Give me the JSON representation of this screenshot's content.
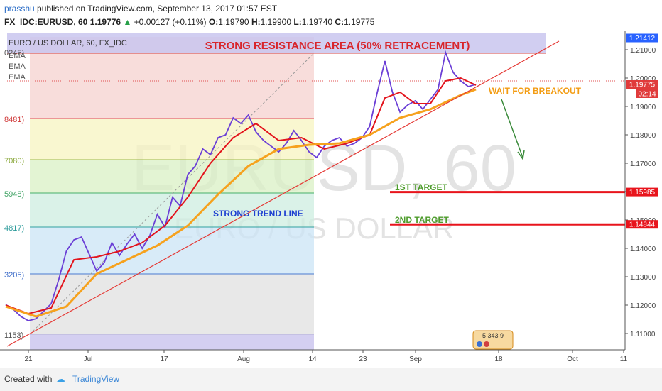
{
  "header": {
    "user": "prasshu",
    "published": "published on TradingView.com, September 13, 2017 01:57 EST",
    "symbol_line": "FX_IDC:EURUSD, 60",
    "last": "1.19776",
    "change": "+0.00127 (+0.11%)",
    "o_label": "O:",
    "o": "1.19790",
    "h_label": "H:",
    "h": "1.19900",
    "l_label": "L:",
    "l": "1.19740",
    "c_label": "C:",
    "c": "1.19775"
  },
  "legend": {
    "title": "EURO / US DOLLAR, 60, FX_IDC",
    "indicators": [
      "EMA",
      "EMA",
      "EMA"
    ]
  },
  "watermark": {
    "symbol": "EURUSD, 60",
    "name": "EURO / US DOLLAR"
  },
  "annotations": {
    "resistance": "STRONG RESISTANCE AREA (50% RETRACEMENT)",
    "breakout": "WAIT FOR BREAKOUT",
    "trendline": "STRONG TREND LINE",
    "target1": "1ST TARGET",
    "target2": "2ND TARGET"
  },
  "badge": "5 343 9",
  "footer": {
    "created_with": "Created with",
    "brand": "TradingView"
  },
  "colors": {
    "ema_fast": "#8a3cd6",
    "ema_mid": "#e3141c",
    "ema_slow": "#f6a21e",
    "trendline": "#e53935",
    "resistance_text": "#d8262c",
    "breakout_text": "#f39c12",
    "target_text": "#4f9d2d",
    "trend_text": "#1e3fd1",
    "axis_blue": "#2962ff"
  },
  "chart_data": {
    "type": "line",
    "title": "EURO / US DOLLAR, 60, FX_IDC",
    "x_ticks": [
      "21",
      "Jul",
      "17",
      "Aug",
      "14",
      "23",
      "Sep",
      "18",
      "Oct",
      "11"
    ],
    "y_ticks": [
      1.11,
      1.12,
      1.13,
      1.14,
      1.15,
      1.16,
      1.17,
      1.18,
      1.19,
      1.2,
      1.21
    ],
    "ylim": [
      1.1055,
      1.2155
    ],
    "price_labels": {
      "top": "1.21412",
      "current": "1.19775",
      "time": "02:14",
      "target1": "1.15985",
      "target2": "1.14844"
    },
    "levels": {
      "top": 1.21412,
      "current": 1.19775,
      "target1": 1.15985,
      "target2": 1.14844
    },
    "fibonacci": {
      "labels": [
        "0245)",
        "8481)",
        "7080)",
        "5948)",
        "4817)",
        "3205)",
        "1153)"
      ],
      "prices": [
        1.2046,
        1.1848,
        1.1717,
        1.1611,
        1.1505,
        1.1324,
        1.1115
      ]
    },
    "series": [
      {
        "name": "EURUSD",
        "points": [
          [
            0,
            1.1202
          ],
          [
            1,
            1.1185
          ],
          [
            2,
            1.116
          ],
          [
            3,
            1.1145
          ],
          [
            4,
            1.1152
          ],
          [
            5,
            1.1178
          ],
          [
            6,
            1.1205
          ],
          [
            7,
            1.129
          ],
          [
            8,
            1.139
          ],
          [
            9,
            1.143
          ],
          [
            10,
            1.144
          ],
          [
            11,
            1.138
          ],
          [
            12,
            1.132
          ],
          [
            13,
            1.135
          ],
          [
            14,
            1.142
          ],
          [
            15,
            1.1375
          ],
          [
            16,
            1.1415
          ],
          [
            17,
            1.145
          ],
          [
            18,
            1.14
          ],
          [
            19,
            1.1445
          ],
          [
            20,
            1.152
          ],
          [
            21,
            1.1475
          ],
          [
            22,
            1.158
          ],
          [
            23,
            1.155
          ],
          [
            24,
            1.166
          ],
          [
            25,
            1.169
          ],
          [
            26,
            1.175
          ],
          [
            27,
            1.173
          ],
          [
            28,
            1.179
          ],
          [
            29,
            1.18
          ],
          [
            30,
            1.186
          ],
          [
            31,
            1.184
          ],
          [
            32,
            1.187
          ],
          [
            33,
            1.181
          ],
          [
            34,
            1.178
          ],
          [
            35,
            1.176
          ],
          [
            36,
            1.174
          ],
          [
            37,
            1.177
          ],
          [
            38,
            1.1815
          ],
          [
            39,
            1.178
          ],
          [
            40,
            1.174
          ],
          [
            41,
            1.172
          ],
          [
            42,
            1.176
          ],
          [
            43,
            1.178
          ],
          [
            44,
            1.179
          ],
          [
            45,
            1.176
          ],
          [
            46,
            1.177
          ],
          [
            47,
            1.179
          ],
          [
            48,
            1.183
          ],
          [
            49,
            1.195
          ],
          [
            50,
            1.206
          ],
          [
            51,
            1.195
          ],
          [
            52,
            1.188
          ],
          [
            53,
            1.1905
          ],
          [
            54,
            1.192
          ],
          [
            55,
            1.189
          ],
          [
            56,
            1.1925
          ],
          [
            57,
            1.196
          ],
          [
            58,
            1.209
          ],
          [
            59,
            1.202
          ],
          [
            60,
            1.199
          ],
          [
            61,
            1.197
          ],
          [
            62,
            1.1978
          ]
        ]
      },
      {
        "name": "EMA",
        "points": [
          [
            0,
            1.12
          ],
          [
            3,
            1.117
          ],
          [
            6,
            1.119
          ],
          [
            9,
            1.136
          ],
          [
            12,
            1.137
          ],
          [
            15,
            1.139
          ],
          [
            18,
            1.142
          ],
          [
            21,
            1.148
          ],
          [
            24,
            1.158
          ],
          [
            27,
            1.17
          ],
          [
            30,
            1.179
          ],
          [
            33,
            1.184
          ],
          [
            36,
            1.178
          ],
          [
            39,
            1.179
          ],
          [
            42,
            1.175
          ],
          [
            45,
            1.177
          ],
          [
            48,
            1.18
          ],
          [
            50,
            1.193
          ],
          [
            52,
            1.195
          ],
          [
            54,
            1.191
          ],
          [
            56,
            1.191
          ],
          [
            58,
            1.199
          ],
          [
            60,
            1.2
          ],
          [
            62,
            1.1975
          ]
        ]
      },
      {
        "name": "EMA",
        "points": [
          [
            0,
            1.1195
          ],
          [
            4,
            1.116
          ],
          [
            8,
            1.1195
          ],
          [
            12,
            1.131
          ],
          [
            16,
            1.136
          ],
          [
            20,
            1.141
          ],
          [
            24,
            1.148
          ],
          [
            28,
            1.159
          ],
          [
            32,
            1.169
          ],
          [
            36,
            1.175
          ],
          [
            40,
            1.1765
          ],
          [
            44,
            1.177
          ],
          [
            48,
            1.18
          ],
          [
            52,
            1.186
          ],
          [
            56,
            1.189
          ],
          [
            60,
            1.194
          ],
          [
            62,
            1.196
          ]
        ]
      }
    ]
  }
}
